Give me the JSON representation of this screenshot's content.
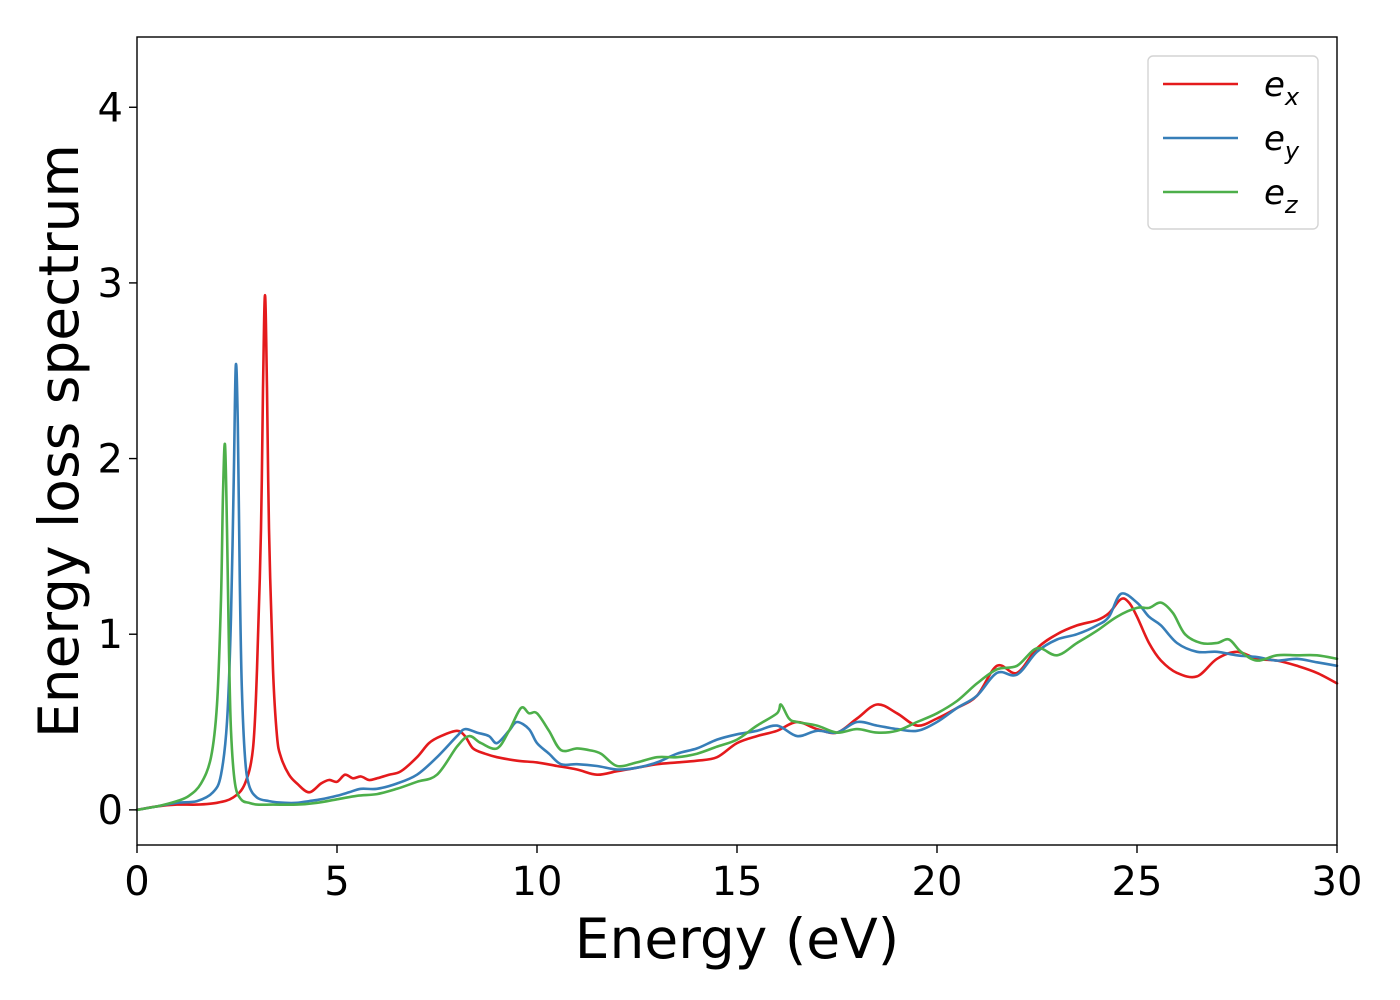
{
  "chart_data": {
    "type": "line",
    "title": "",
    "xlabel": "Energy (eV)",
    "ylabel": "Energy loss spectrum",
    "xlim": [
      0,
      30
    ],
    "ylim": [
      -0.2,
      4.4
    ],
    "xticks": [
      0,
      5,
      10,
      15,
      20,
      25,
      30
    ],
    "yticks": [
      0,
      1,
      2,
      3,
      4
    ],
    "grid": false,
    "legend_position": "top-right",
    "series": [
      {
        "name": "e_x",
        "legend_base": "e",
        "legend_sub": "x",
        "color": "#e41a1c",
        "x": [
          0,
          0.5,
          1,
          1.5,
          2,
          2.4,
          2.7,
          2.9,
          3.0,
          3.1,
          3.15,
          3.2,
          3.25,
          3.3,
          3.4,
          3.5,
          3.6,
          3.8,
          4,
          4.3,
          4.6,
          4.8,
          5,
          5.2,
          5.4,
          5.6,
          5.8,
          6,
          6.3,
          6.6,
          7,
          7.3,
          7.6,
          8,
          8.2,
          8.4,
          8.7,
          9,
          9.5,
          10,
          10.5,
          11,
          11.5,
          12,
          12.5,
          13,
          13.5,
          14,
          14.5,
          15,
          15.5,
          16,
          16.5,
          17,
          17.5,
          18,
          18.5,
          19,
          19.5,
          20,
          20.5,
          21,
          21.5,
          22,
          22.5,
          23,
          23.5,
          24,
          24.3,
          24.6,
          24.8,
          25,
          25.3,
          25.6,
          26,
          26.5,
          27,
          27.5,
          28,
          28.5,
          29,
          29.5,
          30
        ],
        "y": [
          0,
          0.02,
          0.03,
          0.03,
          0.04,
          0.07,
          0.15,
          0.35,
          0.8,
          1.6,
          2.4,
          2.93,
          2.4,
          1.6,
          0.8,
          0.42,
          0.3,
          0.2,
          0.15,
          0.1,
          0.15,
          0.17,
          0.16,
          0.2,
          0.18,
          0.19,
          0.17,
          0.18,
          0.2,
          0.22,
          0.3,
          0.38,
          0.42,
          0.45,
          0.42,
          0.35,
          0.32,
          0.3,
          0.28,
          0.27,
          0.25,
          0.23,
          0.2,
          0.22,
          0.24,
          0.26,
          0.27,
          0.28,
          0.3,
          0.38,
          0.42,
          0.45,
          0.5,
          0.46,
          0.44,
          0.52,
          0.6,
          0.55,
          0.48,
          0.52,
          0.58,
          0.65,
          0.82,
          0.78,
          0.92,
          1.0,
          1.05,
          1.08,
          1.12,
          1.2,
          1.18,
          1.1,
          0.95,
          0.85,
          0.78,
          0.76,
          0.86,
          0.9,
          0.86,
          0.85,
          0.82,
          0.78,
          0.72
        ]
      },
      {
        "name": "e_y",
        "legend_base": "e",
        "legend_sub": "y",
        "color": "#377eb8",
        "x": [
          0,
          0.5,
          1,
          1.5,
          1.9,
          2.1,
          2.25,
          2.35,
          2.42,
          2.47,
          2.52,
          2.57,
          2.62,
          2.7,
          2.8,
          3.0,
          3.3,
          3.7,
          4,
          4.3,
          4.6,
          5,
          5.3,
          5.6,
          6,
          6.5,
          7,
          7.5,
          8,
          8.2,
          8.5,
          8.8,
          9,
          9.3,
          9.5,
          9.8,
          10,
          10.3,
          10.6,
          11,
          11.5,
          12,
          12.5,
          13,
          13.5,
          14,
          14.5,
          15,
          15.5,
          16,
          16.5,
          17,
          17.5,
          18,
          18.5,
          19,
          19.5,
          20,
          20.5,
          21,
          21.5,
          22,
          22.5,
          23,
          23.5,
          24,
          24.3,
          24.6,
          25,
          25.3,
          25.6,
          26,
          26.5,
          27,
          27.5,
          28,
          28.5,
          29,
          29.5,
          30
        ],
        "y": [
          0,
          0.02,
          0.04,
          0.05,
          0.1,
          0.2,
          0.5,
          1.1,
          1.9,
          2.53,
          2.2,
          1.3,
          0.7,
          0.3,
          0.14,
          0.07,
          0.05,
          0.04,
          0.04,
          0.05,
          0.06,
          0.08,
          0.1,
          0.12,
          0.12,
          0.15,
          0.2,
          0.3,
          0.42,
          0.46,
          0.44,
          0.42,
          0.38,
          0.45,
          0.5,
          0.46,
          0.38,
          0.32,
          0.26,
          0.26,
          0.25,
          0.23,
          0.24,
          0.27,
          0.32,
          0.35,
          0.4,
          0.43,
          0.45,
          0.48,
          0.42,
          0.45,
          0.44,
          0.5,
          0.48,
          0.46,
          0.45,
          0.5,
          0.58,
          0.65,
          0.78,
          0.77,
          0.9,
          0.97,
          1.0,
          1.05,
          1.1,
          1.23,
          1.18,
          1.1,
          1.05,
          0.95,
          0.9,
          0.9,
          0.88,
          0.87,
          0.85,
          0.86,
          0.84,
          0.82
        ]
      },
      {
        "name": "e_z",
        "legend_base": "e",
        "legend_sub": "z",
        "color": "#4daf4a",
        "x": [
          0,
          0.5,
          1,
          1.3,
          1.6,
          1.85,
          2.0,
          2.1,
          2.15,
          2.2,
          2.25,
          2.3,
          2.35,
          2.45,
          2.6,
          2.8,
          3.0,
          3.4,
          4,
          4.5,
          5,
          5.5,
          6,
          6.5,
          7,
          7.5,
          8,
          8.3,
          8.6,
          9,
          9.3,
          9.6,
          9.8,
          10,
          10.3,
          10.6,
          11,
          11.3,
          11.6,
          12,
          12.5,
          13,
          13.5,
          14,
          14.5,
          15,
          15.5,
          16,
          16.1,
          16.3,
          16.5,
          17,
          17.5,
          18,
          18.5,
          19,
          19.5,
          20,
          20.5,
          21,
          21.5,
          22,
          22.5,
          23,
          23.5,
          24,
          24.5,
          25,
          25.3,
          25.6,
          25.9,
          26.2,
          26.6,
          27,
          27.3,
          27.6,
          28,
          28.5,
          29,
          29.5,
          30
        ],
        "y": [
          0,
          0.02,
          0.05,
          0.08,
          0.15,
          0.3,
          0.6,
          1.2,
          1.8,
          2.08,
          1.6,
          0.9,
          0.45,
          0.15,
          0.06,
          0.04,
          0.03,
          0.03,
          0.03,
          0.04,
          0.06,
          0.08,
          0.09,
          0.12,
          0.16,
          0.2,
          0.36,
          0.42,
          0.38,
          0.35,
          0.45,
          0.58,
          0.55,
          0.55,
          0.45,
          0.34,
          0.35,
          0.34,
          0.32,
          0.25,
          0.27,
          0.3,
          0.3,
          0.32,
          0.36,
          0.4,
          0.48,
          0.55,
          0.6,
          0.52,
          0.5,
          0.48,
          0.44,
          0.46,
          0.44,
          0.45,
          0.5,
          0.55,
          0.62,
          0.72,
          0.8,
          0.82,
          0.92,
          0.88,
          0.95,
          1.02,
          1.1,
          1.15,
          1.15,
          1.18,
          1.12,
          1.0,
          0.95,
          0.95,
          0.97,
          0.9,
          0.85,
          0.88,
          0.88,
          0.88,
          0.86
        ]
      }
    ]
  }
}
